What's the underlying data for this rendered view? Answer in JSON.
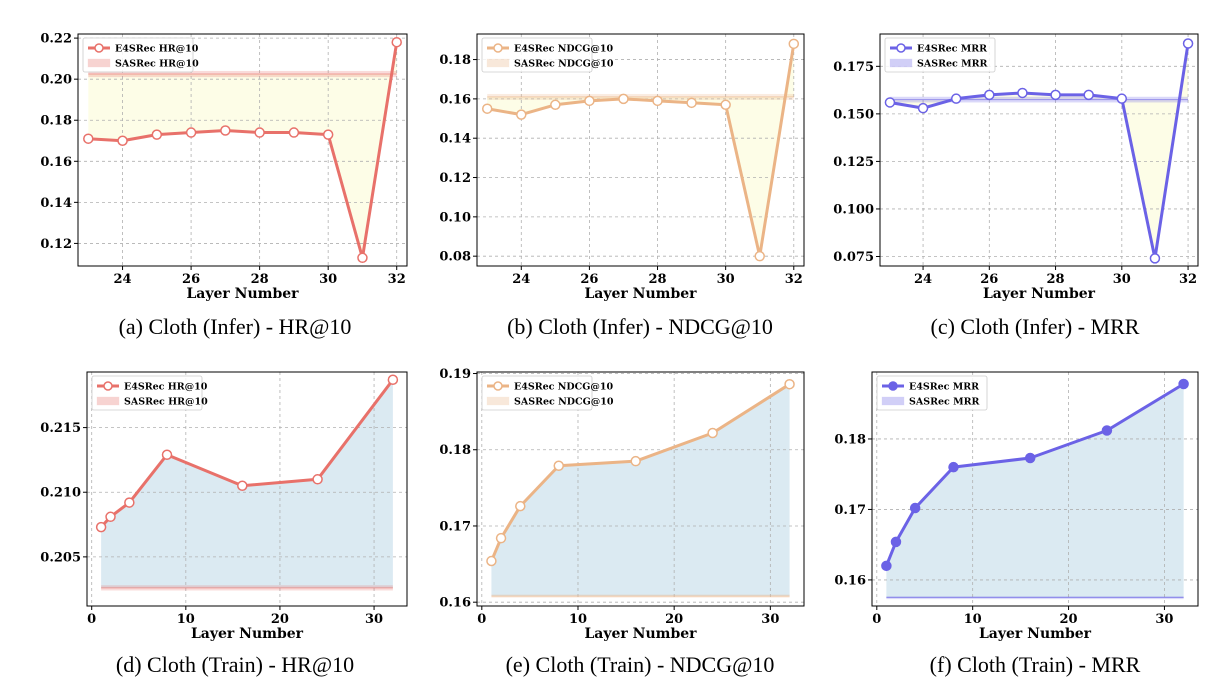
{
  "figure": {
    "colors": {
      "hr": "#e8716a",
      "ndcg": "#ebb486",
      "mrr": "#6b62e6",
      "gap_infer": "#fdfde6",
      "gap_train": "#d9e9f1",
      "grid": "#b0b0b0"
    }
  },
  "chart_data": [
    {
      "type": "line",
      "caption": "(a) Cloth (Infer) - HR@10",
      "xlabel": "Layer Number",
      "ylabel": "",
      "metric_color": "hr",
      "fill_color": "gap_infer",
      "marker": "open",
      "x": [
        23,
        24,
        25,
        26,
        27,
        28,
        29,
        30,
        31,
        32
      ],
      "series": [
        {
          "name": "E4SRec HR@10",
          "values": [
            0.171,
            0.17,
            0.173,
            0.174,
            0.175,
            0.174,
            0.174,
            0.173,
            0.113,
            0.218
          ]
        }
      ],
      "baseline": {
        "name": "SASRec HR@10",
        "value": 0.2025,
        "band": 0.0015
      },
      "xlim": [
        22.7,
        32.3
      ],
      "ylim": [
        0.109,
        0.222
      ],
      "xticks": [
        24,
        26,
        28,
        30,
        32
      ],
      "xtick_labels": [
        "24",
        "26",
        "28",
        "30",
        "32"
      ],
      "yticks": [
        0.12,
        0.14,
        0.16,
        0.18,
        0.2,
        0.22
      ],
      "ytick_labels": [
        "0.12",
        "0.14",
        "0.16",
        "0.18",
        "0.20",
        "0.22"
      ],
      "grid": true,
      "legend": "top-left"
    },
    {
      "type": "line",
      "caption": "(b) Cloth (Infer) - NDCG@10",
      "xlabel": "Layer Number",
      "ylabel": "",
      "metric_color": "ndcg",
      "fill_color": "gap_infer",
      "marker": "open",
      "x": [
        23,
        24,
        25,
        26,
        27,
        28,
        29,
        30,
        31,
        32
      ],
      "series": [
        {
          "name": "E4SRec NDCG@10",
          "values": [
            0.155,
            0.152,
            0.157,
            0.159,
            0.16,
            0.159,
            0.158,
            0.157,
            0.08,
            0.188
          ]
        }
      ],
      "baseline": {
        "name": "SASRec NDCG@10",
        "value": 0.161,
        "band": 0.0015
      },
      "xlim": [
        22.7,
        32.3
      ],
      "ylim": [
        0.075,
        0.193
      ],
      "xticks": [
        24,
        26,
        28,
        30,
        32
      ],
      "xtick_labels": [
        "24",
        "26",
        "28",
        "30",
        "32"
      ],
      "yticks": [
        0.08,
        0.1,
        0.12,
        0.14,
        0.16,
        0.18
      ],
      "ytick_labels": [
        "0.08",
        "0.10",
        "0.12",
        "0.14",
        "0.16",
        "0.18"
      ],
      "grid": true,
      "legend": "top-left"
    },
    {
      "type": "line",
      "caption": "(c) Cloth (Infer) - MRR",
      "xlabel": "Layer Number",
      "ylabel": "",
      "metric_color": "mrr",
      "fill_color": "gap_infer",
      "marker": "open",
      "x": [
        23,
        24,
        25,
        26,
        27,
        28,
        29,
        30,
        31,
        32
      ],
      "series": [
        {
          "name": "E4SRec MRR",
          "values": [
            0.156,
            0.153,
            0.158,
            0.16,
            0.161,
            0.16,
            0.16,
            0.158,
            0.074,
            0.187
          ]
        }
      ],
      "baseline": {
        "name": "SASRec MRR",
        "value": 0.1575,
        "band": 0.0015
      },
      "xlim": [
        22.7,
        32.3
      ],
      "ylim": [
        0.07,
        0.192
      ],
      "xticks": [
        24,
        26,
        28,
        30,
        32
      ],
      "xtick_labels": [
        "24",
        "26",
        "28",
        "30",
        "32"
      ],
      "yticks": [
        0.075,
        0.1,
        0.125,
        0.15,
        0.175
      ],
      "ytick_labels": [
        "0.075",
        "0.100",
        "0.125",
        "0.150",
        "0.175"
      ],
      "grid": true,
      "legend": "top-left"
    },
    {
      "type": "line",
      "caption": "(d) Cloth (Train) - HR@10",
      "xlabel": "Layer Number",
      "ylabel": "",
      "metric_color": "hr",
      "fill_color": "gap_train",
      "marker": "open",
      "x": [
        1,
        2,
        4,
        8,
        16,
        24,
        32
      ],
      "series": [
        {
          "name": "E4SRec HR@10",
          "values": [
            0.2073,
            0.2081,
            0.2092,
            0.2129,
            0.2105,
            0.211,
            0.2187
          ]
        }
      ],
      "baseline": {
        "name": "SASRec HR@10",
        "value": 0.2026,
        "band": 0.0002
      },
      "xlim": [
        -0.5,
        33.5
      ],
      "ylim": [
        0.2012,
        0.2193
      ],
      "xticks": [
        0,
        10,
        20,
        30
      ],
      "xtick_labels": [
        "0",
        "10",
        "20",
        "30"
      ],
      "yticks": [
        0.205,
        0.21,
        0.215
      ],
      "ytick_labels": [
        "0.205",
        "0.210",
        "0.215"
      ],
      "grid": true,
      "legend": "top-left"
    },
    {
      "type": "line",
      "caption": "(e) Cloth (Train) - NDCG@10",
      "xlabel": "Layer Number",
      "ylabel": "",
      "metric_color": "ndcg",
      "fill_color": "gap_train",
      "marker": "open",
      "x": [
        1,
        2,
        4,
        8,
        16,
        24,
        32
      ],
      "series": [
        {
          "name": "E4SRec NDCG@10",
          "values": [
            0.1654,
            0.1684,
            0.1726,
            0.1779,
            0.1785,
            0.1822,
            0.1886
          ]
        }
      ],
      "baseline": {
        "name": "SASRec NDCG@10",
        "value": 0.1608,
        "band": 0.0002
      },
      "xlim": [
        -0.5,
        33.5
      ],
      "ylim": [
        0.1595,
        0.1902
      ],
      "xticks": [
        0,
        10,
        20,
        30
      ],
      "xtick_labels": [
        "0",
        "10",
        "20",
        "30"
      ],
      "yticks": [
        0.16,
        0.17,
        0.18,
        0.19
      ],
      "ytick_labels": [
        "0.16",
        "0.17",
        "0.18",
        "0.19"
      ],
      "grid": true,
      "legend": "top-left"
    },
    {
      "type": "line",
      "caption": "(f) Cloth (Train) - MRR",
      "xlabel": "Layer Number",
      "ylabel": "",
      "metric_color": "mrr",
      "fill_color": "gap_train",
      "marker": "filled",
      "x": [
        1,
        2,
        4,
        8,
        16,
        24,
        32
      ],
      "series": [
        {
          "name": "E4SRec MRR",
          "values": [
            0.162,
            0.1654,
            0.1702,
            0.176,
            0.1773,
            0.1812,
            0.1878
          ]
        }
      ],
      "baseline": {
        "name": "SASRec MRR",
        "value": 0.1575,
        "band": 0.0002
      },
      "xlim": [
        -0.5,
        33.5
      ],
      "ylim": [
        0.1563,
        0.1895
      ],
      "xticks": [
        0,
        10,
        20,
        30
      ],
      "xtick_labels": [
        "0",
        "10",
        "20",
        "30"
      ],
      "yticks": [
        0.16,
        0.17,
        0.18
      ],
      "ytick_labels": [
        "0.16",
        "0.17",
        "0.18"
      ],
      "grid": true,
      "legend": "top-left"
    }
  ]
}
